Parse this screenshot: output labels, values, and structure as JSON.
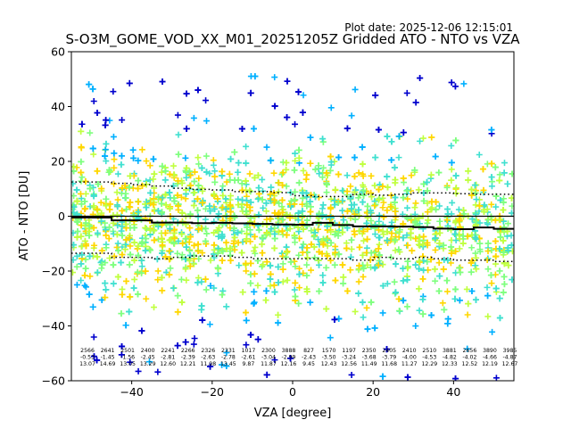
{
  "plot_date": "Plot date: 2025-12-06 12:15:01",
  "chart_data": {
    "type": "scatter",
    "title": "S-O3M_GOME_VOD_XX_M01_20251205Z Gridded ATO - NTO vs VZA",
    "xlabel": "VZA [degree]",
    "ylabel": "ATO - NTO [DU]",
    "xlim": [
      -55,
      55
    ],
    "ylim": [
      -60,
      60
    ],
    "xticks": [
      -40,
      -20,
      0,
      20,
      40
    ],
    "yticks": [
      -60,
      -40,
      -20,
      0,
      20,
      40,
      60
    ],
    "marker": "+",
    "colors": [
      "#0000cd",
      "#00b0ff",
      "#40e0d0",
      "#7fff7f",
      "#c0ff40",
      "#ffd700"
    ],
    "zero_line": 0,
    "mean_line": {
      "x": [
        -55,
        -50,
        -45,
        -40,
        -35,
        -30,
        -25,
        -20,
        -15,
        -10,
        -5,
        0,
        5,
        10,
        15,
        20,
        25,
        30,
        35,
        40,
        45,
        50,
        55
      ],
      "y": [
        -0.5,
        -0.5,
        -1.5,
        -1.5,
        -2.3,
        -2.3,
        -2.5,
        -2.4,
        -2.6,
        -2.8,
        -3.0,
        -3.1,
        -2.4,
        -3.2,
        -3.7,
        -3.7,
        -3.8,
        -4.0,
        -4.5,
        -4.7,
        -4.1,
        -4.6,
        -4.9
      ]
    },
    "upper_sigma_line": {
      "x": [
        -55,
        -50,
        -45,
        -40,
        -35,
        -30,
        -25,
        -20,
        -15,
        -10,
        -5,
        0,
        5,
        10,
        15,
        20,
        25,
        30,
        35,
        40,
        45,
        50,
        55
      ],
      "y": [
        12.5,
        12.5,
        12.0,
        11.5,
        11.0,
        10.2,
        9.8,
        9.6,
        9.0,
        9.0,
        8.6,
        7.5,
        7.2,
        7.2,
        8.0,
        7.7,
        8.0,
        8.5,
        8.5,
        8.2,
        8.0,
        8.0,
        8.0
      ]
    },
    "lower_sigma_line": {
      "x": [
        -55,
        -50,
        -45,
        -40,
        -35,
        -30,
        -25,
        -20,
        -15,
        -10,
        -5,
        0,
        5,
        10,
        15,
        20,
        25,
        30,
        35,
        40,
        45,
        50,
        55
      ],
      "y": [
        -13.5,
        -13.5,
        -15.0,
        -15.0,
        -15.5,
        -15.0,
        -14.5,
        -14.5,
        -15.0,
        -15.5,
        -15.5,
        -15.5,
        -15.5,
        -15.5,
        -16.0,
        -15.0,
        -15.5,
        -15.0,
        -15.5,
        -16.0,
        -16.0,
        -16.5,
        -16.0
      ]
    },
    "bin_stats": {
      "centers": [
        -51,
        -46,
        -41,
        -36,
        -31,
        -26,
        -21,
        -16,
        -11,
        -6,
        -1,
        4,
        9,
        14,
        19,
        24,
        29,
        34,
        39,
        44,
        49,
        54
      ],
      "counts": [
        "2566",
        "2641",
        "2501",
        "2400",
        "2241",
        "2266",
        "2326",
        "2331",
        "1017",
        "2300",
        "3888",
        "827",
        "1570",
        "1197",
        "2350",
        "2405",
        "2410",
        "2510",
        "3881",
        "2656",
        "3890",
        "3985"
      ],
      "means": [
        "-0.53",
        "-1.45",
        "-1.56",
        "-2.45",
        "-2.81",
        "-2.39",
        "-2.63",
        "-2.78",
        "-2.61",
        "-3.04",
        "-2.99",
        "-2.43",
        "-3.50",
        "-3.24",
        "-3.68",
        "-3.79",
        "-4.00",
        "-4.53",
        "-4.82",
        "-4.02",
        "-4.66",
        "-4.87"
      ],
      "stds": [
        "13.07",
        "14.69",
        "13.05",
        "13.29",
        "12.60",
        "12.21",
        "11.98",
        "13.45",
        "9.87",
        "11.87",
        "12.16",
        "9.45",
        "12.43",
        "12.56",
        "11.49",
        "11.68",
        "11.27",
        "12.29",
        "12.33",
        "12.52",
        "12.19",
        "12.67"
      ]
    }
  }
}
